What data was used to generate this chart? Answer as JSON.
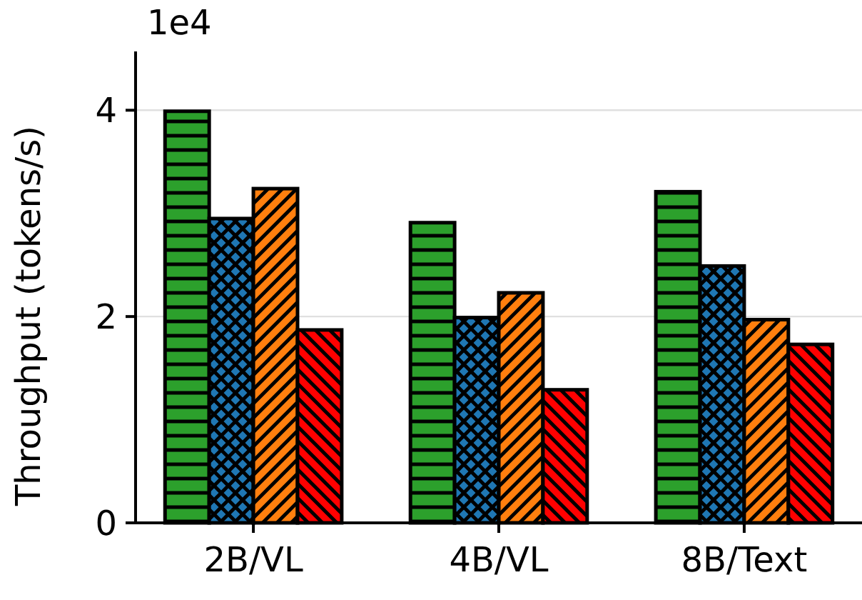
{
  "chart_data": {
    "type": "bar",
    "ylabel": "Throughput (tokens/s)",
    "annotations": [
      "1e4"
    ],
    "categories": [
      "2B/VL",
      "4B/VL",
      "8B/Text"
    ],
    "series": [
      {
        "color": "#2ca02c",
        "values": [
          3.99,
          2.91,
          3.21
        ]
      },
      {
        "color": "#1f77b4",
        "values": [
          2.95,
          1.99,
          2.49
        ]
      },
      {
        "color": "#ff7f0e",
        "values": [
          3.24,
          2.23,
          1.97
        ]
      },
      {
        "color": "#ff0000",
        "values": [
          1.87,
          1.29,
          1.73
        ]
      }
    ],
    "ylim": [
      0,
      4.57
    ],
    "yticks": [
      0,
      2,
      4
    ],
    "grid": "y"
  }
}
